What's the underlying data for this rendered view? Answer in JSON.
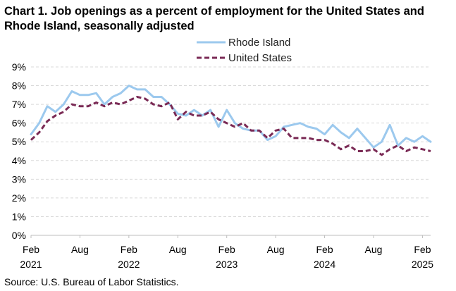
{
  "chart_data": {
    "type": "line",
    "title": "Chart 1. Job openings as a percent of employment for the United States and Rhode Island, seasonally adjusted",
    "xlabel": "",
    "ylabel": "",
    "ylim": [
      0,
      9
    ],
    "yticks": [
      "0%",
      "1%",
      "2%",
      "3%",
      "4%",
      "5%",
      "6%",
      "7%",
      "8%",
      "9%"
    ],
    "xticks": [
      {
        "month": "Feb",
        "year": "2021",
        "index": 0
      },
      {
        "month": "Aug",
        "year": "",
        "index": 6
      },
      {
        "month": "Feb",
        "year": "2022",
        "index": 12
      },
      {
        "month": "Aug",
        "year": "",
        "index": 18
      },
      {
        "month": "Feb",
        "year": "2023",
        "index": 24
      },
      {
        "month": "Aug",
        "year": "",
        "index": 30
      },
      {
        "month": "Feb",
        "year": "2024",
        "index": 36
      },
      {
        "month": "Aug",
        "year": "",
        "index": 42
      },
      {
        "month": "Feb",
        "year": "2025",
        "index": 48
      }
    ],
    "grid": true,
    "legend_position": "top-right",
    "series": [
      {
        "name": "Rhode Island",
        "color": "#9cc9ee",
        "style": "solid",
        "values": [
          5.4,
          6.0,
          6.9,
          6.6,
          7.0,
          7.7,
          7.5,
          7.5,
          7.6,
          7.0,
          7.4,
          7.6,
          8.0,
          7.8,
          7.8,
          7.4,
          7.4,
          7.0,
          6.5,
          6.4,
          6.7,
          6.4,
          6.7,
          5.8,
          6.7,
          6.0,
          5.7,
          5.6,
          5.6,
          5.1,
          5.3,
          5.8,
          5.9,
          6.0,
          5.8,
          5.7,
          5.4,
          5.9,
          5.5,
          5.2,
          5.7,
          5.2,
          4.7,
          5.0,
          5.9,
          4.8,
          5.2,
          5.0,
          5.3,
          5.0
        ]
      },
      {
        "name": "United States",
        "color": "#7a2a55",
        "style": "dashed",
        "values": [
          5.1,
          5.5,
          6.1,
          6.4,
          6.6,
          7.0,
          6.9,
          6.9,
          7.1,
          6.9,
          7.1,
          7.0,
          7.2,
          7.4,
          7.3,
          7.0,
          6.9,
          7.1,
          6.2,
          6.6,
          6.4,
          6.4,
          6.6,
          6.2,
          6.0,
          5.8,
          6.0,
          5.6,
          5.6,
          5.2,
          5.6,
          5.7,
          5.2,
          5.2,
          5.2,
          5.1,
          5.1,
          4.9,
          4.6,
          4.8,
          4.5,
          4.5,
          4.6,
          4.3,
          4.6,
          4.8,
          4.5,
          4.7,
          4.6,
          4.5
        ]
      }
    ]
  },
  "source": "Source: U.S. Bureau of Labor Statistics."
}
